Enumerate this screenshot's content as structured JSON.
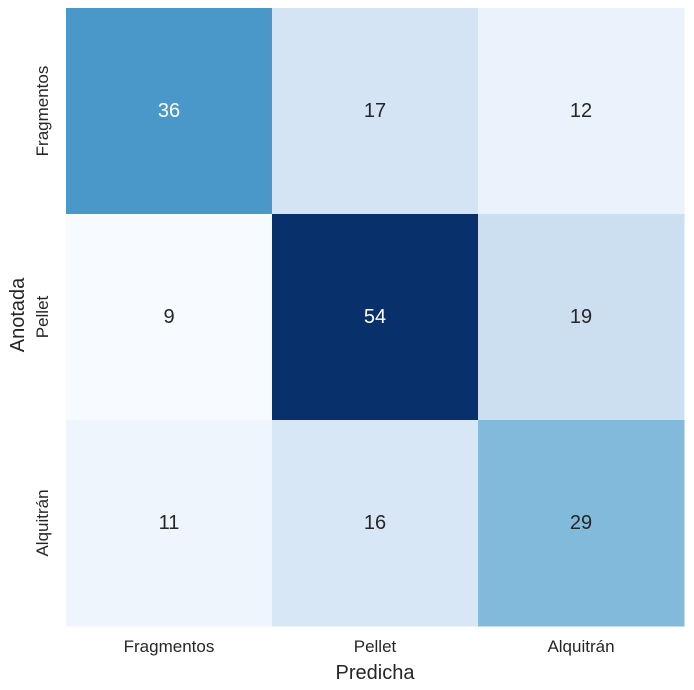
{
  "chart_data": {
    "type": "heatmap",
    "title": "",
    "xlabel": "Predicha",
    "ylabel": "Anotada",
    "x_categories": [
      "Fragmentos",
      "Pellet",
      "Alquitrán"
    ],
    "y_categories": [
      "Fragmentos",
      "Pellet",
      "Alquitrán"
    ],
    "values": [
      [
        36,
        17,
        12
      ],
      [
        9,
        54,
        19
      ],
      [
        11,
        16,
        29
      ]
    ],
    "colormap": "Blues",
    "colorbar": false,
    "vmin": 9,
    "vmax": 54,
    "grid": false
  }
}
